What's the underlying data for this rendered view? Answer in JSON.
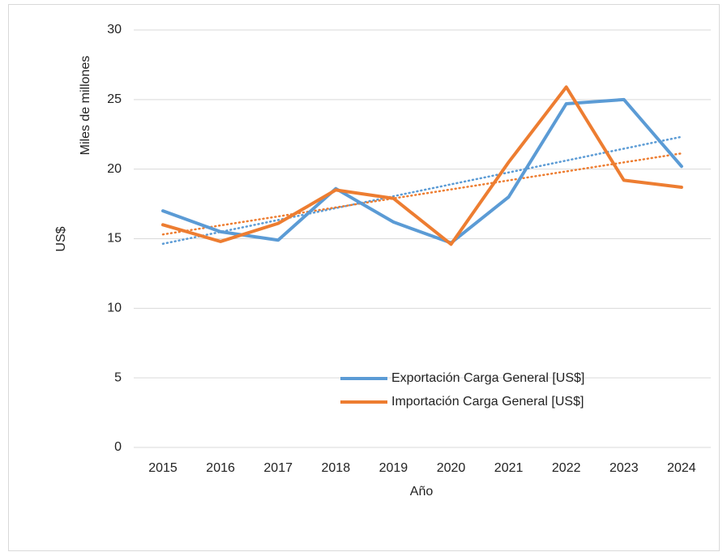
{
  "chart_data": {
    "type": "line",
    "x_label": "Año",
    "y_label": "US$",
    "y_unit_label": "Miles de millones",
    "categories": [
      "2015",
      "2016",
      "2017",
      "2018",
      "2019",
      "2020",
      "2021",
      "2022",
      "2023",
      "2024"
    ],
    "series": [
      {
        "name": "Exportación Carga General [US$]",
        "color": "#5b9bd5",
        "values": [
          17.0,
          15.5,
          14.9,
          18.6,
          16.2,
          14.7,
          18.0,
          24.7,
          25.0,
          20.2
        ]
      },
      {
        "name": "Importación Carga General [US$]",
        "color": "#ed7d31",
        "values": [
          16.0,
          14.8,
          16.1,
          18.5,
          17.9,
          14.6,
          20.5,
          25.9,
          19.2,
          18.7
        ]
      }
    ],
    "ylim": [
      0,
      30
    ],
    "yticks": [
      0,
      5,
      10,
      15,
      20,
      25,
      30
    ],
    "grid": true,
    "trendline": "linear",
    "legend": "lower right"
  }
}
